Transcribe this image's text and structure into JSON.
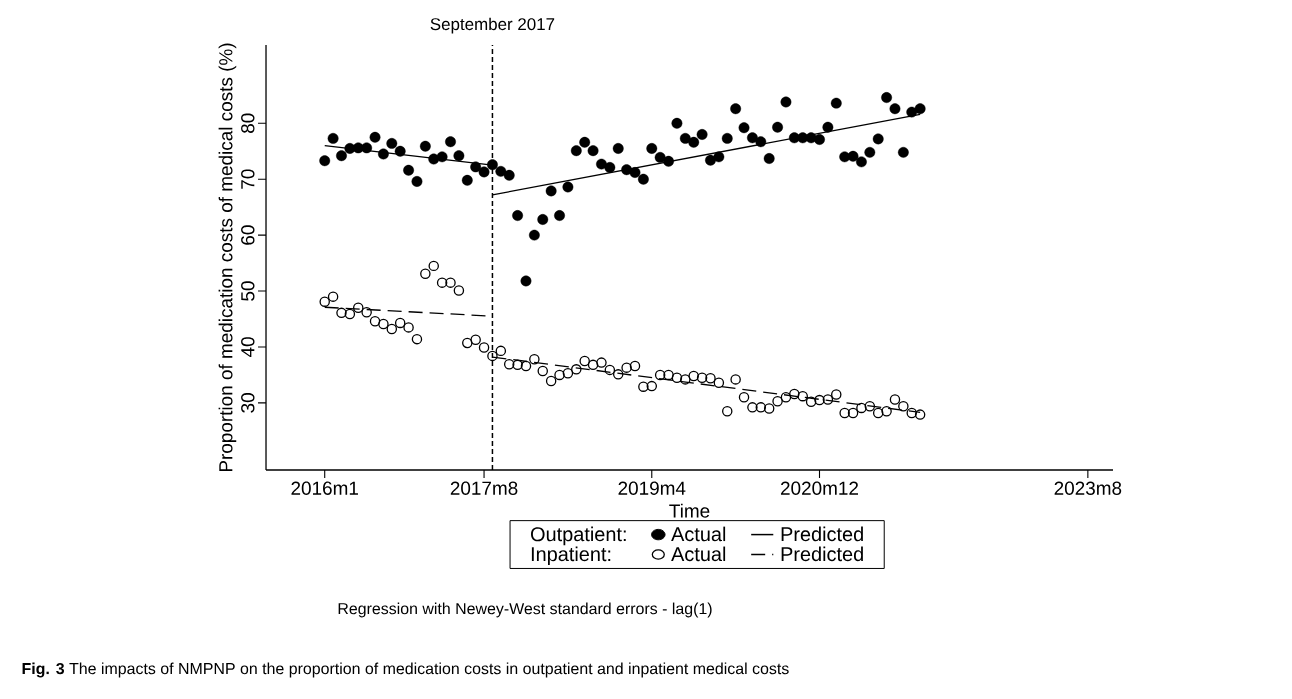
{
  "chart_data": {
    "type": "scatter",
    "xlabel": "Time",
    "ylabel": "Proportion of medication costs of medical costs (%)",
    "x": [
      "2016-01",
      "2016-02",
      "2016-03",
      "2016-04",
      "2016-05",
      "2016-06",
      "2016-07",
      "2016-08",
      "2016-09",
      "2016-10",
      "2016-11",
      "2016-12",
      "2017-01",
      "2017-02",
      "2017-03",
      "2017-04",
      "2017-05",
      "2017-06",
      "2017-07",
      "2017-08",
      "2017-09",
      "2017-10",
      "2017-11",
      "2017-12",
      "2018-01",
      "2018-02",
      "2018-03",
      "2018-04",
      "2018-05",
      "2018-06",
      "2018-07",
      "2018-08",
      "2018-09",
      "2018-10",
      "2018-11",
      "2018-12",
      "2019-01",
      "2019-02",
      "2019-03",
      "2019-04",
      "2019-05",
      "2019-06",
      "2019-07",
      "2019-08",
      "2019-09",
      "2019-10",
      "2019-11",
      "2019-12",
      "2020-01",
      "2020-02",
      "2020-03",
      "2020-04",
      "2020-05",
      "2020-06",
      "2020-07",
      "2020-08",
      "2020-09",
      "2020-10",
      "2020-11",
      "2020-12",
      "2021-01",
      "2021-02",
      "2021-03",
      "2021-04",
      "2021-05",
      "2021-06",
      "2021-07",
      "2021-08",
      "2021-09",
      "2021-10",
      "2021-11",
      "2021-12"
    ],
    "series": [
      {
        "name": "Actual",
        "marker": "circle",
        "color": "#000000",
        "values": [
          73.3,
          77.3,
          74.2,
          75.5,
          75.6,
          75.6,
          77.5,
          74.5,
          76.4,
          75.0,
          71.6,
          69.6,
          75.9,
          73.6,
          74.0,
          76.7,
          74.2,
          69.8,
          72.2,
          71.3,
          72.6,
          71.4,
          70.7,
          63.5,
          51.8,
          60.0,
          62.8,
          67.9,
          63.5,
          68.6,
          75.1,
          76.6,
          75.1,
          72.7,
          72.1,
          75.5,
          71.7,
          71.2,
          70.0,
          75.5,
          73.9,
          73.2,
          80.0,
          77.3,
          76.6,
          78.0,
          73.4,
          74.0,
          77.3,
          82.6,
          79.2,
          77.4,
          76.7,
          73.7,
          79.3,
          83.8,
          77.4,
          77.4,
          77.4,
          77.1,
          79.3,
          83.6,
          74.0,
          74.1,
          73.1,
          74.8,
          77.2,
          84.6,
          82.6,
          74.8,
          82.0,
          82.6
        ]
      },
      {
        "name": "Predicted",
        "type": "line",
        "marker": "none",
        "line_style": "solid",
        "color": "#000000",
        "x": [
          "2017-09",
          "2021-12"
        ],
        "values": [
          67.2,
          81.6
        ]
      },
      {
        "type": "line",
        "marker": "none",
        "line_style": "solid",
        "color": "#000000",
        "x": [
          "2016-01",
          "2017-09"
        ],
        "values": [
          76.0,
          72.5
        ]
      },
      {
        "name": "Actual",
        "marker": "open circle",
        "color": "#000000",
        "values": [
          48.1,
          49.0,
          46.1,
          45.9,
          47.0,
          46.2,
          44.6,
          44.1,
          43.2,
          44.3,
          43.5,
          41.4,
          53.1,
          54.5,
          51.5,
          51.5,
          50.1,
          40.7,
          41.3,
          39.9,
          38.4,
          39.3,
          36.9,
          36.8,
          36.6,
          37.8,
          35.7,
          33.9,
          35.0,
          35.3,
          36.0,
          37.5,
          36.8,
          37.2,
          35.9,
          35.1,
          36.3,
          36.6,
          32.9,
          33.0,
          35.0,
          35.0,
          34.5,
          34.2,
          34.8,
          34.5,
          34.4,
          33.6,
          28.5,
          34.2,
          31.0,
          29.2,
          29.2,
          29.0,
          30.3,
          31.0,
          31.6,
          31.2,
          30.2,
          30.5,
          30.6,
          31.5,
          28.2,
          28.2,
          29.1,
          29.4,
          28.2,
          28.5,
          30.6,
          29.4,
          28.2,
          27.9
        ]
      },
      {
        "name": "Predicted",
        "type": "line",
        "marker": "none",
        "line_style": "dashed",
        "color": "#000000",
        "x": [
          "2017-09",
          "2021-12"
        ],
        "values": [
          38.2,
          28.3
        ]
      },
      {
        "type": "line",
        "marker": "none",
        "line_style": "dashed",
        "color": "#000000",
        "x": [
          "2016-01",
          "2017-09"
        ],
        "values": [
          47.1,
          45.5
        ]
      }
    ],
    "xlim": [
      "2015-06",
      "2023-11"
    ],
    "ylim": [
      18,
      94
    ],
    "xticks": [
      {
        "value": "2016-01",
        "label": "2016m1"
      },
      {
        "value": "2017-08",
        "label": "2017m8"
      },
      {
        "value": "2019-04",
        "label": "2019m4"
      },
      {
        "value": "2020-12",
        "label": "2020m12"
      },
      {
        "value": "2023-08",
        "label": "2023m8"
      }
    ],
    "yticks": [
      30,
      40,
      50,
      60,
      70,
      80
    ],
    "ref_lines": [
      {
        "axis": "x",
        "value": "2017-09",
        "label": "September 2017",
        "line_style": "dashed",
        "color": "#000000"
      }
    ],
    "legend": "bottom",
    "grid": false,
    "annotations": [
      "Outpatient:",
      "Inpatient:",
      "Regression with Newey-West standard errors - lag(1)",
      "**Fig. 3** The impacts of NMPNP on the proportion of medication costs in outpatient and inpatient medical costs"
    ]
  }
}
